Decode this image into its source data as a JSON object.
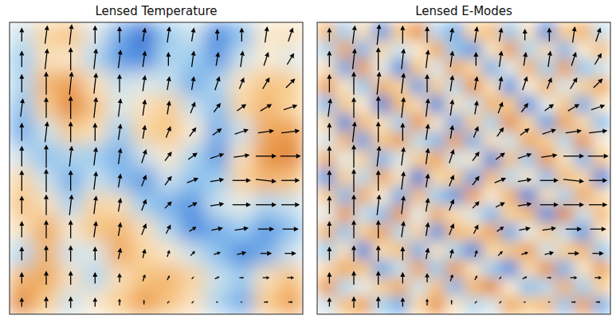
{
  "chart_data": [
    {
      "type": "heatmap",
      "title": "Lensed Temperature",
      "tick_labels": false,
      "zlim": [
        -3,
        3
      ],
      "cells": [
        [
          -0.5,
          0.8,
          1.2,
          -0.3,
          -1.5,
          -2.5,
          -1.0,
          -0.5,
          -2.0,
          -1.2,
          0.3,
          0.5
        ],
        [
          -1.0,
          0.5,
          0.3,
          -0.8,
          -1.8,
          -2.0,
          -0.8,
          -1.0,
          -1.8,
          -0.5,
          0.2,
          -0.3
        ],
        [
          -0.8,
          1.5,
          2.0,
          0.5,
          -0.5,
          -0.3,
          -0.5,
          -1.5,
          -0.8,
          0.5,
          1.2,
          1.0
        ],
        [
          -1.2,
          1.0,
          2.5,
          1.2,
          -0.3,
          0.5,
          1.0,
          -0.5,
          -1.2,
          0.8,
          1.5,
          0.8
        ],
        [
          -1.5,
          -0.5,
          1.0,
          0.5,
          -1.0,
          0.8,
          1.2,
          0.2,
          -1.5,
          -0.5,
          1.8,
          2.0
        ],
        [
          -0.5,
          -1.2,
          -0.8,
          -1.0,
          -1.5,
          -0.5,
          0.3,
          -0.8,
          -1.8,
          0.5,
          2.2,
          2.5
        ],
        [
          0.8,
          -0.5,
          -1.5,
          -0.5,
          -1.2,
          -1.8,
          -0.5,
          -1.2,
          -1.0,
          0.8,
          1.5,
          1.2
        ],
        [
          1.2,
          0.5,
          -0.8,
          0.8,
          0.5,
          -1.0,
          -1.5,
          -1.8,
          -0.5,
          -0.2,
          -0.8,
          -0.5
        ],
        [
          0.5,
          1.8,
          0.3,
          1.2,
          1.5,
          0.5,
          -0.8,
          -2.0,
          -1.5,
          -1.0,
          -1.8,
          -1.2
        ],
        [
          -0.8,
          1.5,
          -0.5,
          -0.3,
          1.8,
          0.8,
          0.3,
          -0.5,
          -1.2,
          -2.0,
          -1.5,
          -0.5
        ],
        [
          1.5,
          1.8,
          0.5,
          -0.8,
          0.5,
          1.2,
          1.5,
          0.8,
          -0.5,
          -1.0,
          0.5,
          1.2
        ],
        [
          2.5,
          1.0,
          -0.5,
          0.3,
          1.0,
          2.0,
          1.2,
          0.5,
          -0.8,
          -1.5,
          1.0,
          2.0
        ]
      ],
      "vectors": {
        "u": [
          [
            0,
            0.1,
            0.1,
            0,
            0,
            0.1,
            0.1,
            0.1,
            0,
            0,
            0.1,
            0.2
          ],
          [
            0,
            0.1,
            0,
            0.1,
            0.1,
            0.1,
            0,
            0.1,
            0.1,
            0.1,
            0.2,
            0.3
          ],
          [
            0,
            0,
            0.1,
            0.1,
            0,
            0.1,
            0.1,
            0.1,
            0.2,
            0.2,
            0.3,
            0.4
          ],
          [
            0.1,
            0,
            0,
            0.1,
            0.1,
            0.1,
            0.1,
            0.2,
            0.3,
            0.4,
            0.5,
            0.6
          ],
          [
            0,
            0.1,
            0,
            0,
            0.1,
            0.1,
            0.2,
            0.3,
            0.4,
            0.6,
            0.7,
            0.8
          ],
          [
            0,
            0,
            0.1,
            0.1,
            0.1,
            0.2,
            0.3,
            0.4,
            0.6,
            0.7,
            0.9,
            0.9
          ],
          [
            0,
            0,
            0,
            0.1,
            0.1,
            0.2,
            0.3,
            0.5,
            0.6,
            0.8,
            0.9,
            0.8
          ],
          [
            0,
            0,
            0.1,
            0.1,
            0.1,
            0.2,
            0.3,
            0.4,
            0.6,
            0.8,
            0.9,
            0.8
          ],
          [
            0,
            0,
            0,
            0.1,
            0.1,
            0.2,
            0.2,
            0.3,
            0.5,
            0.6,
            0.7,
            0.7
          ],
          [
            0,
            0,
            0,
            0,
            0.1,
            0.1,
            0.1,
            0.2,
            0.3,
            0.4,
            0.5,
            0.5
          ],
          [
            0,
            0,
            0,
            0,
            0,
            0.1,
            0.1,
            0.1,
            0.2,
            0.2,
            0.3,
            0.3
          ],
          [
            0,
            0,
            0,
            0,
            0,
            0,
            0.1,
            0.1,
            0.1,
            0.1,
            0.2,
            0.2
          ]
        ],
        "v": [
          [
            0.6,
            0.8,
            0.9,
            0.8,
            0.7,
            0.6,
            0.7,
            0.6,
            0.5,
            0.6,
            0.7,
            0.6
          ],
          [
            0.7,
            0.9,
            1.0,
            0.9,
            0.8,
            0.7,
            0.6,
            0.7,
            0.6,
            0.7,
            0.6,
            0.5
          ],
          [
            0.8,
            1.0,
            1.0,
            0.9,
            0.8,
            0.7,
            0.6,
            0.6,
            0.6,
            0.5,
            0.5,
            0.4
          ],
          [
            0.8,
            0.9,
            1.0,
            0.9,
            0.8,
            0.7,
            0.6,
            0.5,
            0.4,
            0.3,
            0.3,
            0.2
          ],
          [
            0.8,
            0.9,
            0.9,
            0.8,
            0.7,
            0.6,
            0.5,
            0.4,
            0.3,
            0.2,
            0.1,
            0.1
          ],
          [
            0.9,
            1.0,
            0.9,
            0.8,
            0.7,
            0.6,
            0.4,
            0.3,
            0.2,
            0.1,
            0.0,
            0.0
          ],
          [
            0.9,
            1.0,
            0.9,
            0.8,
            0.6,
            0.5,
            0.4,
            0.2,
            0.1,
            0.0,
            -0.1,
            0.0
          ],
          [
            0.8,
            0.9,
            0.9,
            0.8,
            0.6,
            0.5,
            0.3,
            0.2,
            0.1,
            0.0,
            0.0,
            0.0
          ],
          [
            0.7,
            0.8,
            0.8,
            0.7,
            0.6,
            0.5,
            0.4,
            0.2,
            0.1,
            0.1,
            0.0,
            0.0
          ],
          [
            0.6,
            0.7,
            0.7,
            0.6,
            0.5,
            0.4,
            0.3,
            0.2,
            0.1,
            0.1,
            0.0,
            0.0
          ],
          [
            0.5,
            0.6,
            0.6,
            0.5,
            0.4,
            0.3,
            0.2,
            0.1,
            0.1,
            0.0,
            0.0,
            0.0
          ],
          [
            0.4,
            0.5,
            0.5,
            0.4,
            0.3,
            0.2,
            0.1,
            0.1,
            0.0,
            0.0,
            0.0,
            0.0
          ]
        ]
      }
    },
    {
      "type": "heatmap",
      "title": "Lensed E-Modes",
      "tick_labels": false,
      "zlim": [
        -2.5,
        2.5
      ],
      "cells": [
        [
          1.2,
          -0.8,
          0.5,
          -1.5,
          0.9,
          1.8,
          -0.6,
          -1.2,
          0.7,
          1.1,
          -0.9,
          0.4,
          -1.6,
          0.8,
          1.3,
          -0.5
        ],
        [
          -0.7,
          1.5,
          -1.1,
          0.6,
          -0.4,
          0.2,
          1.4,
          -0.9,
          -1.5,
          0.3,
          1.6,
          -0.7,
          0.5,
          -1.1,
          0.2,
          1.0
        ],
        [
          0.4,
          -1.3,
          1.7,
          -0.2,
          -1.6,
          0.9,
          -0.3,
          1.5,
          0.6,
          -1.2,
          -0.2,
          1.3,
          -0.8,
          1.6,
          -0.9,
          -0.4
        ],
        [
          1.6,
          0.3,
          -0.9,
          1.3,
          0.7,
          -1.4,
          0.8,
          -0.6,
          1.8,
          0.4,
          -1.5,
          0.1,
          1.2,
          -0.3,
          0.7,
          1.4
        ],
        [
          -1.1,
          0.9,
          0.2,
          -1.8,
          1.2,
          0.5,
          -1.7,
          0.4,
          -0.5,
          1.3,
          0.8,
          -1.6,
          -0.2,
          0.9,
          -1.3,
          0.3
        ],
        [
          0.6,
          -1.6,
          1.1,
          0.4,
          -0.8,
          1.7,
          0.3,
          -1.3,
          0.9,
          -0.7,
          1.9,
          0.6,
          -1.4,
          1.5,
          0.5,
          -1.0
        ],
        [
          -0.3,
          1.2,
          -1.4,
          0.9,
          1.6,
          -0.5,
          -1.1,
          1.6,
          -1.2,
          0.5,
          -0.4,
          1.4,
          0.8,
          -0.6,
          1.8,
          0.2
        ],
        [
          1.4,
          -0.2,
          0.7,
          -1.2,
          -0.3,
          0.8,
          1.5,
          -0.4,
          0.3,
          -1.7,
          1.0,
          -0.9,
          1.7,
          0.4,
          -1.1,
          0.9
        ],
        [
          -1.5,
          0.8,
          -0.6,
          1.5,
          0.4,
          -1.9,
          0.6,
          0.9,
          -1.4,
          1.2,
          -0.6,
          0.3,
          -1.0,
          1.1,
          0.6,
          -1.7
        ],
        [
          0.9,
          -1.1,
          1.4,
          0.2,
          -1.3,
          1.1,
          -0.8,
          -1.5,
          1.6,
          0.2,
          1.3,
          -1.8,
          0.5,
          -0.7,
          1.4,
          0.5
        ],
        [
          -0.2,
          1.7,
          -0.5,
          -1.0,
          1.8,
          -0.2,
          1.3,
          0.5,
          -0.3,
          -1.1,
          0.7,
          1.2,
          -1.6,
          2.0,
          -0.4,
          1.1
        ],
        [
          1.3,
          -0.9,
          0.8,
          1.6,
          -0.6,
          0.7,
          -1.5,
          1.2,
          0.8,
          1.5,
          -1.3,
          -0.2,
          0.9,
          -0.5,
          -1.5,
          0.4
        ],
        [
          -0.8,
          0.4,
          -1.7,
          0.5,
          1.0,
          -1.2,
          0.4,
          -0.7,
          -1.8,
          0.6,
          0.9,
          1.6,
          -0.4,
          0.8,
          1.2,
          -0.9
        ],
        [
          0.5,
          1.4,
          0.9,
          -1.3,
          -0.5,
          1.5,
          -0.9,
          1.7,
          0.4,
          -0.8,
          -1.7,
          0.5,
          1.8,
          -1.2,
          0.3,
          1.6
        ],
        [
          1.7,
          -0.6,
          -0.2,
          0.8,
          1.4,
          -0.4,
          1.0,
          -1.1,
          1.2,
          1.9,
          0.2,
          -1.0,
          -0.6,
          1.3,
          -0.8,
          0.7
        ],
        [
          -0.4,
          1.0,
          1.5,
          -0.7,
          -1.2,
          0.6,
          1.8,
          0.3,
          -0.6,
          -0.3,
          1.4,
          0.8,
          1.1,
          -0.9,
          1.6,
          -1.2
        ]
      ],
      "vectors": {
        "u": [
          [
            0,
            0.1,
            0.1,
            0,
            0,
            0.1,
            0.1,
            0.1,
            0,
            0,
            0.1,
            0.2
          ],
          [
            0,
            0.1,
            0,
            0.1,
            0.1,
            0.1,
            0,
            0.1,
            0.1,
            0.1,
            0.2,
            0.3
          ],
          [
            0,
            0,
            0.1,
            0.1,
            0,
            0.1,
            0.1,
            0.1,
            0.2,
            0.2,
            0.3,
            0.4
          ],
          [
            0.1,
            0,
            0,
            0.1,
            0.1,
            0.1,
            0.1,
            0.2,
            0.3,
            0.4,
            0.5,
            0.6
          ],
          [
            0,
            0.1,
            0,
            0,
            0.1,
            0.1,
            0.2,
            0.3,
            0.4,
            0.6,
            0.7,
            0.8
          ],
          [
            0,
            0,
            0.1,
            0.1,
            0.1,
            0.2,
            0.3,
            0.4,
            0.6,
            0.7,
            0.9,
            0.9
          ],
          [
            0,
            0,
            0,
            0.1,
            0.1,
            0.2,
            0.3,
            0.5,
            0.6,
            0.8,
            0.9,
            0.8
          ],
          [
            0,
            0,
            0.1,
            0.1,
            0.1,
            0.2,
            0.3,
            0.4,
            0.6,
            0.8,
            0.9,
            0.8
          ],
          [
            0,
            0,
            0,
            0.1,
            0.1,
            0.2,
            0.2,
            0.3,
            0.5,
            0.6,
            0.7,
            0.7
          ],
          [
            0,
            0,
            0,
            0,
            0.1,
            0.1,
            0.1,
            0.2,
            0.3,
            0.4,
            0.5,
            0.5
          ],
          [
            0,
            0,
            0,
            0,
            0,
            0.1,
            0.1,
            0.1,
            0.2,
            0.2,
            0.3,
            0.3
          ],
          [
            0,
            0,
            0,
            0,
            0,
            0,
            0.1,
            0.1,
            0.1,
            0.1,
            0.2,
            0.2
          ]
        ],
        "v": [
          [
            0.6,
            0.8,
            0.9,
            0.8,
            0.7,
            0.6,
            0.7,
            0.6,
            0.5,
            0.6,
            0.7,
            0.6
          ],
          [
            0.7,
            0.9,
            1.0,
            0.9,
            0.8,
            0.7,
            0.6,
            0.7,
            0.6,
            0.7,
            0.6,
            0.5
          ],
          [
            0.8,
            1.0,
            1.0,
            0.9,
            0.8,
            0.7,
            0.6,
            0.6,
            0.6,
            0.5,
            0.5,
            0.4
          ],
          [
            0.8,
            0.9,
            1.0,
            0.9,
            0.8,
            0.7,
            0.6,
            0.5,
            0.4,
            0.3,
            0.3,
            0.2
          ],
          [
            0.8,
            0.9,
            0.9,
            0.8,
            0.7,
            0.6,
            0.5,
            0.4,
            0.3,
            0.2,
            0.1,
            0.1
          ],
          [
            0.9,
            1.0,
            0.9,
            0.8,
            0.7,
            0.6,
            0.4,
            0.3,
            0.2,
            0.1,
            0.0,
            0.0
          ],
          [
            0.9,
            1.0,
            0.9,
            0.8,
            0.6,
            0.5,
            0.4,
            0.2,
            0.1,
            0.0,
            -0.1,
            0.0
          ],
          [
            0.8,
            0.9,
            0.9,
            0.8,
            0.6,
            0.5,
            0.3,
            0.2,
            0.1,
            0.0,
            0.0,
            0.0
          ],
          [
            0.7,
            0.8,
            0.8,
            0.7,
            0.6,
            0.5,
            0.4,
            0.2,
            0.1,
            0.1,
            0.0,
            0.0
          ],
          [
            0.6,
            0.7,
            0.7,
            0.6,
            0.5,
            0.4,
            0.3,
            0.2,
            0.1,
            0.1,
            0.0,
            0.0
          ],
          [
            0.5,
            0.6,
            0.6,
            0.5,
            0.4,
            0.3,
            0.2,
            0.1,
            0.1,
            0.0,
            0.0,
            0.0
          ],
          [
            0.4,
            0.5,
            0.5,
            0.4,
            0.3,
            0.2,
            0.1,
            0.1,
            0.0,
            0.0,
            0.0,
            0.0
          ]
        ]
      }
    }
  ]
}
